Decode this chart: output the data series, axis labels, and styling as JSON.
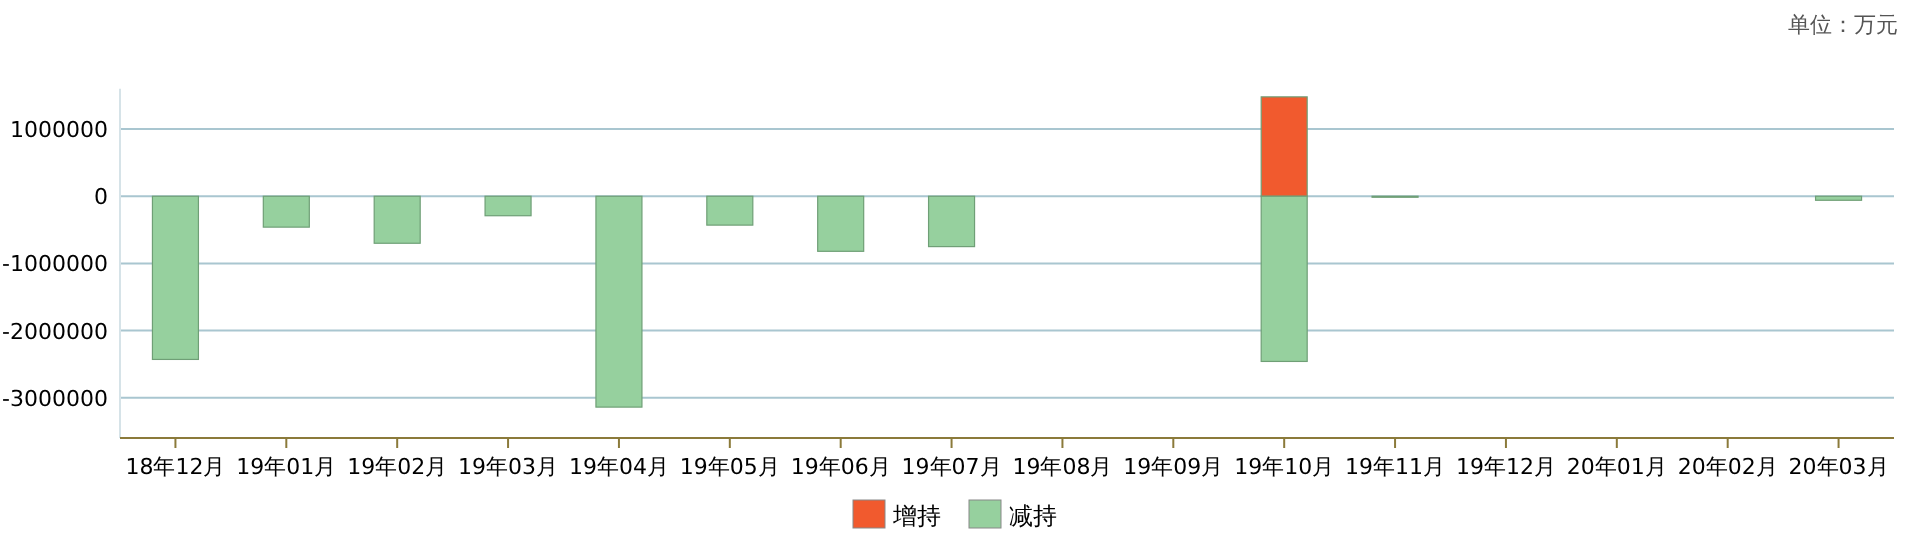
{
  "chart_data": {
    "type": "bar",
    "stacked": true,
    "annotations": [
      "单位：万元"
    ],
    "categories": [
      "18年12月",
      "19年01月",
      "19年02月",
      "19年03月",
      "19年04月",
      "19年05月",
      "19年06月",
      "19年07月",
      "19年08月",
      "19年09月",
      "19年10月",
      "19年11月",
      "19年12月",
      "20年01月",
      "20年02月",
      "20年03月"
    ],
    "series": [
      {
        "name": "增持",
        "color": "#f15a2e",
        "values": [
          null,
          null,
          null,
          null,
          null,
          null,
          null,
          null,
          null,
          null,
          1480000,
          null,
          null,
          null,
          null,
          null
        ]
      },
      {
        "name": "减持",
        "color": "#96d09e",
        "values": [
          -2430000,
          -460000,
          -700000,
          -290000,
          -3140000,
          -430000,
          -820000,
          -750000,
          null,
          null,
          -2460000,
          -10000,
          null,
          null,
          null,
          -60000
        ]
      }
    ],
    "ylim": [
      -3600000,
      1600000
    ],
    "yticks": [
      -3000000,
      -2000000,
      -1000000,
      0,
      1000000
    ],
    "grid": "y",
    "legend": "bottom"
  }
}
